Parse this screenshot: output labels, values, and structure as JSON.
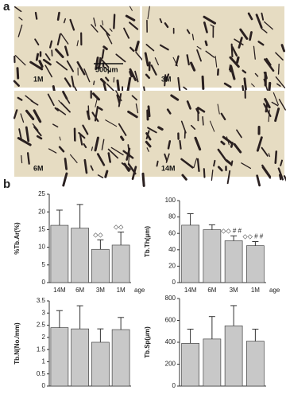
{
  "panels": [
    "a",
    "b"
  ],
  "images": [
    {
      "label": "1M",
      "scale": "500μm"
    },
    {
      "label": "3M"
    },
    {
      "label": "6M"
    },
    {
      "label": "14M"
    }
  ],
  "chart_data": [
    {
      "type": "bar",
      "y_label": "%Tb.Ar(%)",
      "x_label": "age",
      "categories": [
        "14M",
        "6M",
        "3M",
        "1M"
      ],
      "values": [
        16.2,
        15.4,
        9.4,
        10.6
      ],
      "errors": [
        4.3,
        6.7,
        2.7,
        3.7
      ],
      "annotations": [
        null,
        null,
        "◇◇",
        "◇◇"
      ],
      "color": "#c8c8c8",
      "ylim": [
        0,
        25
      ],
      "yticks": [
        0,
        5,
        10,
        15,
        20,
        25
      ]
    },
    {
      "type": "bar",
      "y_label": "Tb.Th(μm)",
      "x_label": "age",
      "categories": [
        "14M",
        "6M",
        "3M",
        "1M"
      ],
      "values": [
        70,
        64.5,
        51,
        45
      ],
      "errors": [
        14,
        6,
        6,
        5
      ],
      "annotations": [
        null,
        null,
        "◇◇ # #",
        "◇◇ # #"
      ],
      "color": "#c8c8c8",
      "ylim": [
        0,
        100
      ],
      "yticks": [
        0,
        20,
        40,
        60,
        80,
        100
      ]
    },
    {
      "type": "bar",
      "y_label": "Tb.N(No./mm)",
      "values": [
        2.4,
        2.35,
        1.8,
        2.32
      ],
      "errors": [
        0.7,
        0.95,
        0.55,
        0.5
      ],
      "color": "#c8c8c8",
      "ylim": [
        0,
        3.5
      ],
      "yticks": [
        0,
        0.5,
        1,
        1.5,
        2,
        2.5,
        3,
        3.5
      ]
    },
    {
      "type": "bar",
      "y_label": "Tb.Sp(μm)",
      "values": [
        390,
        430,
        550,
        410
      ],
      "errors": [
        130,
        205,
        185,
        110
      ],
      "color": "#c8c8c8",
      "ylim": [
        0,
        800
      ],
      "yticks": [
        0,
        200,
        400,
        600,
        800
      ]
    }
  ]
}
